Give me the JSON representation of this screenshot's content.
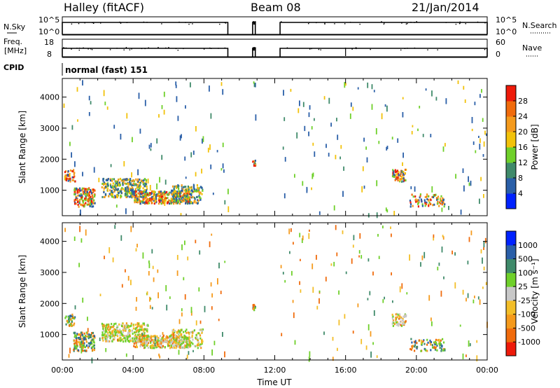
{
  "header": {
    "station": "Halley (fitACF)",
    "beam": "Beam 08",
    "date": "21/Jan/2014"
  },
  "top_panels": {
    "nsky": {
      "left_label": "N.Sky",
      "right_label": "N.Search",
      "tick_top": "10^5",
      "tick_bottom": "10^0",
      "right_tick_top": "10^5",
      "right_tick_bottom": "10^0"
    },
    "freq": {
      "left_label_1": "Freq.",
      "left_label_2": "[MHz]",
      "tick_top": "18",
      "tick_bottom": "8",
      "right_label": "Nave",
      "right_tick_top": "60",
      "right_tick_bottom": "0"
    },
    "cpid": {
      "label": "CPID",
      "value": "normal (fast) 151"
    }
  },
  "chart_data": [
    {
      "type": "heatmap",
      "name": "power",
      "xlabel": "",
      "ylabel": "Slant Range [km]",
      "colorbar_label": "Power [dB]",
      "colorbar_ticks": [
        "4",
        "8",
        "12",
        "16",
        "20",
        "24",
        "28"
      ],
      "colorbar_colors": [
        "#0022ff",
        "#2a5fa8",
        "#3f8a6a",
        "#6fd02a",
        "#f2c20a",
        "#f49a1c",
        "#f06b0c",
        "#ee1a0a"
      ],
      "y_ticks": [
        "1000",
        "2000",
        "3000",
        "4000"
      ],
      "ylim": [
        180,
        4600
      ],
      "xlim": [
        0,
        24
      ],
      "color_key": "#2a5fa8",
      "color_strong": "#f06b0c"
    },
    {
      "type": "heatmap",
      "name": "velocity",
      "xlabel": "Time UT",
      "ylabel": "Slant Range [km]",
      "colorbar_label": "Velocity [m s⁻¹]",
      "colorbar_ticks": [
        "-1000",
        "-500",
        "-100",
        "-25",
        "25",
        "100",
        "500",
        "1000"
      ],
      "colorbar_colors": [
        "#ee1a0a",
        "#f06b0c",
        "#f59a1c",
        "#f3be28",
        "#c8c8c8",
        "#6fd02a",
        "#3f8a6a",
        "#2a5fa8",
        "#0022ff"
      ],
      "y_ticks": [
        "1000",
        "2000",
        "3000",
        "4000"
      ],
      "x_ticks": [
        "00:00",
        "04:00",
        "08:00",
        "12:00",
        "16:00",
        "20:00",
        "00:00"
      ],
      "ylim": [
        180,
        4600
      ],
      "xlim": [
        0,
        24
      ]
    }
  ]
}
